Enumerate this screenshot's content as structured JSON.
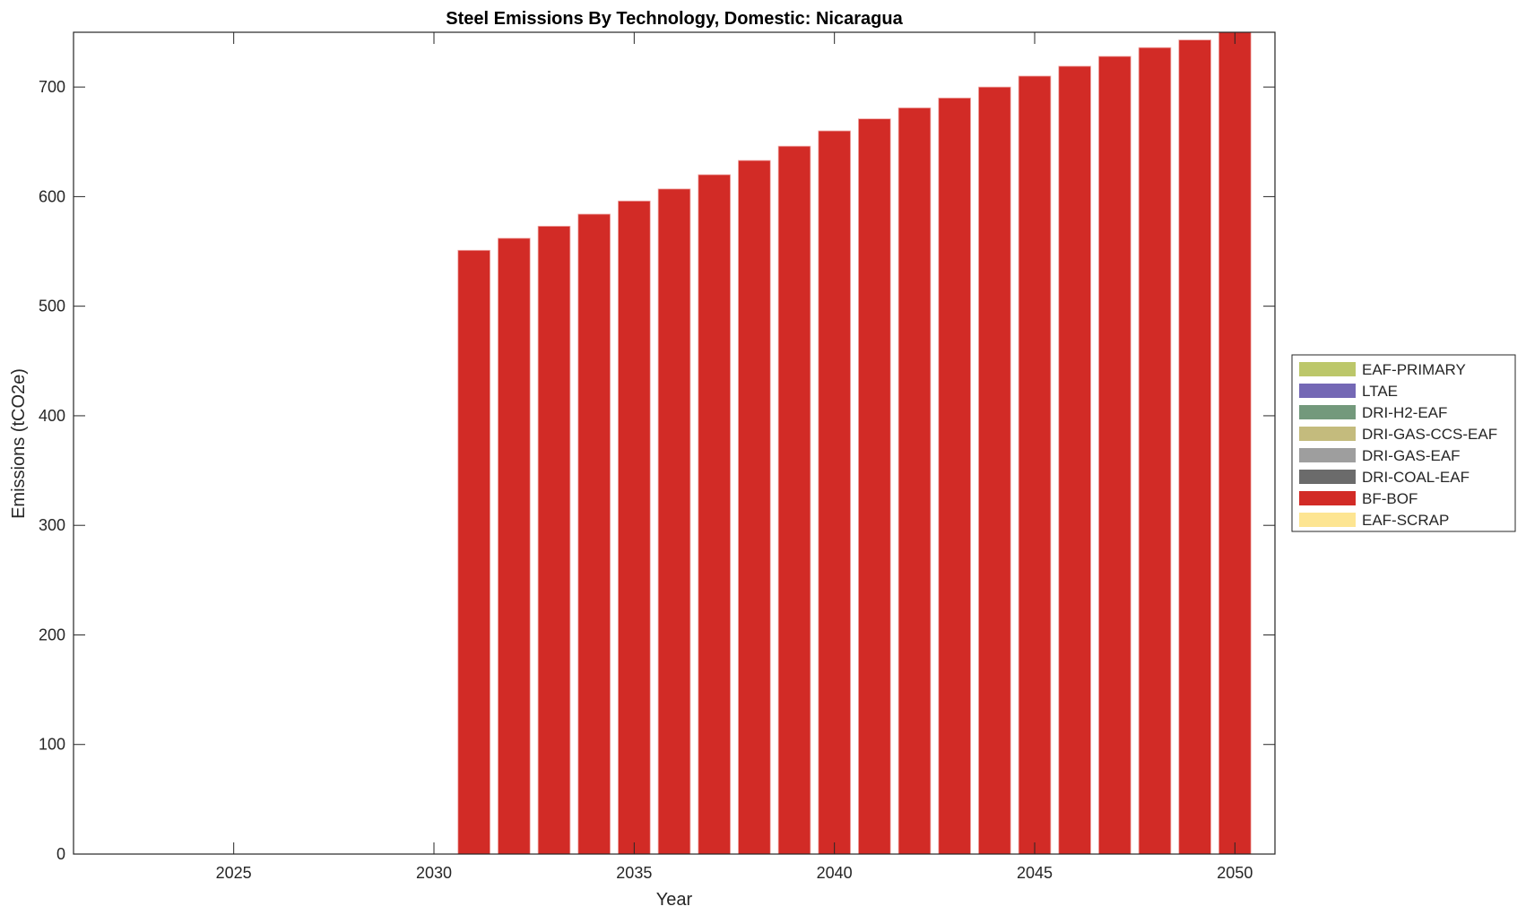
{
  "chart_data": {
    "type": "bar",
    "stacked": true,
    "title": "Steel Emissions By Technology, Domestic: Nicaragua",
    "xlabel": "Year",
    "ylabel": "Emissions (tCO2e)",
    "xlim": [
      2021,
      2051
    ],
    "ylim": [
      0,
      750
    ],
    "xticks": [
      2025,
      2030,
      2035,
      2040,
      2045,
      2050
    ],
    "yticks": [
      0,
      100,
      200,
      300,
      400,
      500,
      600,
      700
    ],
    "grid": false,
    "legend_position": "right",
    "x": [
      2031,
      2032,
      2033,
      2034,
      2035,
      2036,
      2037,
      2038,
      2039,
      2040,
      2041,
      2042,
      2043,
      2044,
      2045,
      2046,
      2047,
      2048,
      2049,
      2050
    ],
    "series": [
      {
        "name": "EAF-PRIMARY",
        "color": "#bcc76a",
        "values": [
          0,
          0,
          0,
          0,
          0,
          0,
          0,
          0,
          0,
          0,
          0,
          0,
          0,
          0,
          0,
          0,
          0,
          0,
          0,
          0
        ]
      },
      {
        "name": "LTAE",
        "color": "#7468b5",
        "values": [
          0,
          0,
          0,
          0,
          0,
          0,
          0,
          0,
          0,
          0,
          0,
          0,
          0,
          0,
          0,
          0,
          0,
          0,
          0,
          0
        ]
      },
      {
        "name": "DRI-H2-EAF",
        "color": "#73997c",
        "values": [
          0,
          0,
          0,
          0,
          0,
          0,
          0,
          0,
          0,
          0,
          0,
          0,
          0,
          0,
          0,
          0,
          0,
          0,
          0,
          0
        ]
      },
      {
        "name": "DRI-GAS-CCS-EAF",
        "color": "#c4bb7d",
        "values": [
          0,
          0,
          0,
          0,
          0,
          0,
          0,
          0,
          0,
          0,
          0,
          0,
          0,
          0,
          0,
          0,
          0,
          0,
          0,
          0
        ]
      },
      {
        "name": "DRI-GAS-EAF",
        "color": "#9e9e9e",
        "values": [
          0,
          0,
          0,
          0,
          0,
          0,
          0,
          0,
          0,
          0,
          0,
          0,
          0,
          0,
          0,
          0,
          0,
          0,
          0,
          0
        ]
      },
      {
        "name": "DRI-COAL-EAF",
        "color": "#6b6b6b",
        "values": [
          0,
          0,
          0,
          0,
          0,
          0,
          0,
          0,
          0,
          0,
          0,
          0,
          0,
          0,
          0,
          0,
          0,
          0,
          0,
          0
        ]
      },
      {
        "name": "BF-BOF",
        "color": "#d22b26",
        "values": [
          551,
          562,
          573,
          584,
          596,
          607,
          620,
          633,
          646,
          660,
          671,
          681,
          690,
          700,
          710,
          719,
          728,
          736,
          743,
          752
        ]
      },
      {
        "name": "EAF-SCRAP",
        "color": "#fde592",
        "values": [
          0,
          0,
          0,
          0,
          0,
          0,
          0,
          0,
          0,
          0,
          0,
          0,
          0,
          0,
          0,
          0,
          0,
          0,
          0,
          0
        ]
      }
    ]
  }
}
